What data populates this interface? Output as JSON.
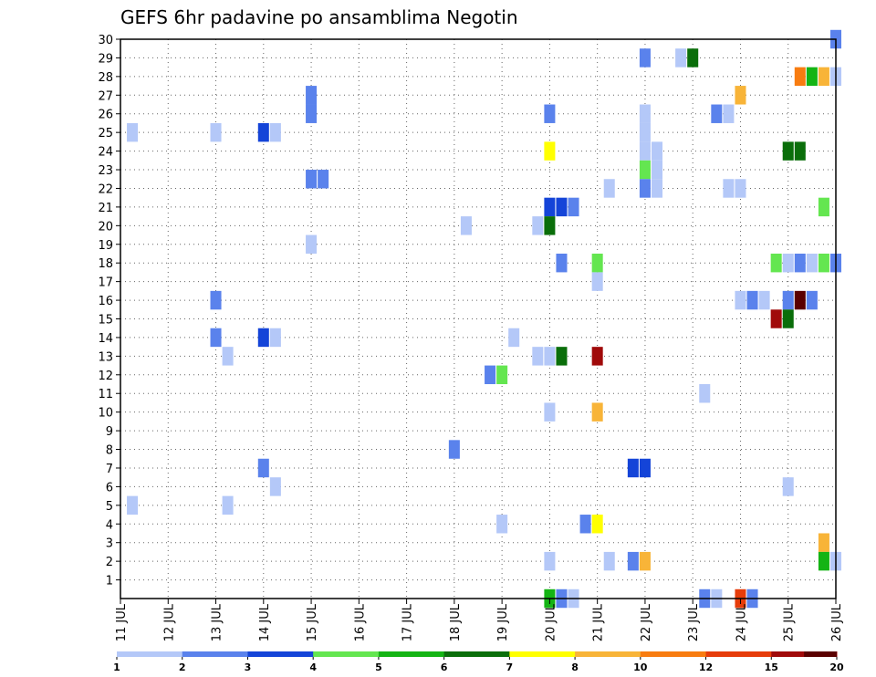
{
  "chart_data": {
    "type": "heatmap",
    "title": "GEFS 6hr padavine po ansamblima Negotin",
    "xlabel": "",
    "ylabel": "",
    "x_ticks": [
      "11 JUL",
      "12 JUL",
      "13 JUL",
      "14 JUL",
      "15 JUL",
      "16 JUL",
      "17 JUL",
      "18 JUL",
      "19 JUL",
      "20 JUL",
      "21 JUL",
      "22 JUL",
      "23 JUL",
      "24 JUL",
      "25 JUL",
      "26 JUL"
    ],
    "xlim": [
      11.0,
      26.0
    ],
    "y_ticks": [
      "1",
      "2",
      "3",
      "4",
      "5",
      "6",
      "7",
      "8",
      "9",
      "10",
      "11",
      "12",
      "13",
      "14",
      "15",
      "16",
      "17",
      "18",
      "19",
      "20",
      "21",
      "22",
      "23",
      "24",
      "25",
      "26",
      "27",
      "28",
      "29",
      "30"
    ],
    "ylim": [
      0,
      30
    ],
    "grid": true,
    "colorbar": {
      "labels": [
        "1",
        "2",
        "3",
        "4",
        "5",
        "6",
        "7",
        "8",
        "10",
        "12",
        "15",
        "20"
      ],
      "colors": [
        "#b4c8f8",
        "#5a82ec",
        "#1444d8",
        "#64e650",
        "#14b414",
        "#0a6e0a",
        "#ffff00",
        "#f8b438",
        "#f87c10",
        "#e63c0a",
        "#a00a0a",
        "#5a0000"
      ]
    },
    "cells": [
      {
        "t": 11.25,
        "member": 25,
        "cat": 1
      },
      {
        "t": 11.25,
        "member": 5,
        "cat": 1
      },
      {
        "t": 13.0,
        "member": 25,
        "cat": 1
      },
      {
        "t": 13.0,
        "member": 16,
        "cat": 2
      },
      {
        "t": 13.0,
        "member": 14,
        "cat": 2
      },
      {
        "t": 13.25,
        "member": 13,
        "cat": 1
      },
      {
        "t": 13.25,
        "member": 5,
        "cat": 1
      },
      {
        "t": 14.0,
        "member": 25,
        "cat": 3
      },
      {
        "t": 14.25,
        "member": 25,
        "cat": 1
      },
      {
        "t": 14.0,
        "member": 14,
        "cat": 3
      },
      {
        "t": 14.25,
        "member": 14,
        "cat": 1
      },
      {
        "t": 14.0,
        "member": 7,
        "cat": 2
      },
      {
        "t": 14.25,
        "member": 6,
        "cat": 1
      },
      {
        "t": 15.0,
        "member": 27,
        "cat": 2
      },
      {
        "t": 15.0,
        "member": 26,
        "cat": 2
      },
      {
        "t": 15.0,
        "member": 22.5,
        "cat": 2
      },
      {
        "t": 15.25,
        "member": 22.5,
        "cat": 2
      },
      {
        "t": 15.0,
        "member": 19,
        "cat": 1
      },
      {
        "t": 18.0,
        "member": 8,
        "cat": 2
      },
      {
        "t": 18.25,
        "member": 20,
        "cat": 1
      },
      {
        "t": 18.75,
        "member": 12,
        "cat": 2
      },
      {
        "t": 19.0,
        "member": 12,
        "cat": 4
      },
      {
        "t": 19.0,
        "member": 4,
        "cat": 1
      },
      {
        "t": 19.25,
        "member": 14,
        "cat": 1
      },
      {
        "t": 19.75,
        "member": 20,
        "cat": 1
      },
      {
        "t": 19.75,
        "member": 13,
        "cat": 1
      },
      {
        "t": 20.0,
        "member": 26,
        "cat": 2
      },
      {
        "t": 20.0,
        "member": 24,
        "cat": 7
      },
      {
        "t": 20.0,
        "member": 21,
        "cat": 3
      },
      {
        "t": 20.0,
        "member": 20,
        "cat": 6
      },
      {
        "t": 20.0,
        "member": 13,
        "cat": 1
      },
      {
        "t": 20.0,
        "member": 10,
        "cat": 1
      },
      {
        "t": 20.0,
        "member": 2,
        "cat": 1
      },
      {
        "t": 20.0,
        "member": 0,
        "cat": 5
      },
      {
        "t": 20.25,
        "member": 21,
        "cat": 3
      },
      {
        "t": 20.25,
        "member": 18,
        "cat": 2
      },
      {
        "t": 20.25,
        "member": 13,
        "cat": 6
      },
      {
        "t": 20.25,
        "member": 0,
        "cat": 2
      },
      {
        "t": 20.5,
        "member": 21,
        "cat": 2
      },
      {
        "t": 20.5,
        "member": 0,
        "cat": 1
      },
      {
        "t": 20.75,
        "member": 4,
        "cat": 2
      },
      {
        "t": 21.0,
        "member": 18,
        "cat": 4
      },
      {
        "t": 21.0,
        "member": 17,
        "cat": 1
      },
      {
        "t": 21.0,
        "member": 13,
        "cat": 11
      },
      {
        "t": 21.0,
        "member": 10,
        "cat": 8
      },
      {
        "t": 21.0,
        "member": 4,
        "cat": 7
      },
      {
        "t": 21.25,
        "member": 22,
        "cat": 1
      },
      {
        "t": 21.25,
        "member": 2,
        "cat": 1
      },
      {
        "t": 21.75,
        "member": 7,
        "cat": 3
      },
      {
        "t": 21.75,
        "member": 2,
        "cat": 2
      },
      {
        "t": 22.0,
        "member": 29,
        "cat": 2
      },
      {
        "t": 22.0,
        "member": 26,
        "cat": 1
      },
      {
        "t": 22.0,
        "member": 25,
        "cat": 1
      },
      {
        "t": 22.0,
        "member": 24,
        "cat": 1
      },
      {
        "t": 22.0,
        "member": 23,
        "cat": 4
      },
      {
        "t": 22.0,
        "member": 22,
        "cat": 2
      },
      {
        "t": 22.0,
        "member": 7,
        "cat": 3
      },
      {
        "t": 22.0,
        "member": 2,
        "cat": 8
      },
      {
        "t": 22.25,
        "member": 24,
        "cat": 1
      },
      {
        "t": 22.25,
        "member": 23,
        "cat": 1
      },
      {
        "t": 22.25,
        "member": 22,
        "cat": 1
      },
      {
        "t": 22.75,
        "member": 29,
        "cat": 1
      },
      {
        "t": 23.0,
        "member": 29,
        "cat": 6
      },
      {
        "t": 23.25,
        "member": 11,
        "cat": 1
      },
      {
        "t": 23.25,
        "member": 0,
        "cat": 2
      },
      {
        "t": 23.5,
        "member": 26,
        "cat": 2
      },
      {
        "t": 23.5,
        "member": 0,
        "cat": 1
      },
      {
        "t": 23.75,
        "member": 26,
        "cat": 1
      },
      {
        "t": 23.75,
        "member": 22,
        "cat": 1
      },
      {
        "t": 24.0,
        "member": 27,
        "cat": 8
      },
      {
        "t": 24.0,
        "member": 22,
        "cat": 1
      },
      {
        "t": 24.0,
        "member": 16,
        "cat": 1
      },
      {
        "t": 24.0,
        "member": 0,
        "cat": 10
      },
      {
        "t": 24.25,
        "member": 16,
        "cat": 2
      },
      {
        "t": 24.25,
        "member": 0,
        "cat": 2
      },
      {
        "t": 24.5,
        "member": 16,
        "cat": 1
      },
      {
        "t": 24.75,
        "member": 18,
        "cat": 4
      },
      {
        "t": 24.75,
        "member": 15,
        "cat": 11
      },
      {
        "t": 25.0,
        "member": 24,
        "cat": 6
      },
      {
        "t": 25.25,
        "member": 24,
        "cat": 6
      },
      {
        "t": 25.0,
        "member": 18,
        "cat": 1
      },
      {
        "t": 25.0,
        "member": 16,
        "cat": 2
      },
      {
        "t": 25.0,
        "member": 15,
        "cat": 6
      },
      {
        "t": 25.0,
        "member": 6,
        "cat": 1
      },
      {
        "t": 25.25,
        "member": 28,
        "cat": 9
      },
      {
        "t": 25.25,
        "member": 18,
        "cat": 2
      },
      {
        "t": 25.25,
        "member": 16,
        "cat": 12
      },
      {
        "t": 25.5,
        "member": 28,
        "cat": 5
      },
      {
        "t": 25.5,
        "member": 18,
        "cat": 1
      },
      {
        "t": 25.5,
        "member": 16,
        "cat": 2
      },
      {
        "t": 25.75,
        "member": 28,
        "cat": 8
      },
      {
        "t": 25.75,
        "member": 21,
        "cat": 4
      },
      {
        "t": 25.75,
        "member": 18,
        "cat": 4
      },
      {
        "t": 25.75,
        "member": 3,
        "cat": 8
      },
      {
        "t": 25.75,
        "member": 2,
        "cat": 5
      },
      {
        "t": 26.0,
        "member": 30,
        "cat": 2
      },
      {
        "t": 26.0,
        "member": 28,
        "cat": 1
      },
      {
        "t": 26.0,
        "member": 18,
        "cat": 2
      },
      {
        "t": 26.0,
        "member": 2,
        "cat": 1
      }
    ]
  }
}
